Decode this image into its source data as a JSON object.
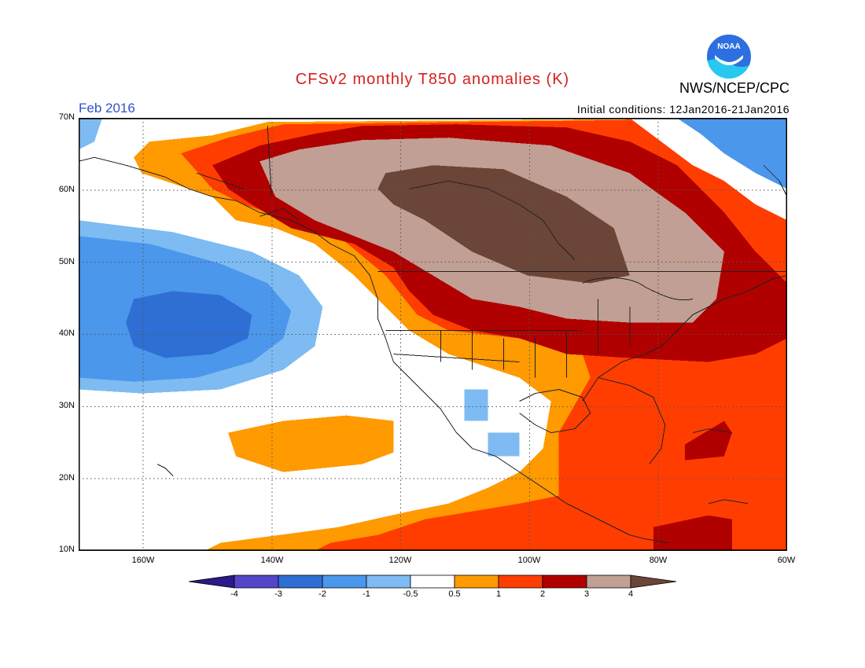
{
  "header": {
    "title": "CFSv2 monthly T850 anomalies (K)",
    "agency": "NWS/NCEP/CPC",
    "logo_text": "NOAA",
    "period": "Feb 2016",
    "initial_conditions": "Initial conditions: 12Jan2016-21Jan2016"
  },
  "colors": {
    "title": "#d62020",
    "period": "#3050d0",
    "frame": "#000000",
    "coast": "#222222",
    "grid": "#555555"
  },
  "map": {
    "lon_range": [
      -170,
      -60
    ],
    "lat_range": [
      10,
      70
    ],
    "lat_labels": [
      "70N",
      "60N",
      "50N",
      "40N",
      "30N",
      "20N",
      "10N"
    ],
    "lon_labels": [
      "160W",
      "140W",
      "120W",
      "100W",
      "80W",
      "60W"
    ],
    "gridlines": "dotted"
  },
  "colorbar": {
    "levels": [
      "-4",
      "-3",
      "-2",
      "-1",
      "-0.5",
      "0.5",
      "1",
      "2",
      "3",
      "4"
    ],
    "colors": [
      "#2a1a8a",
      "#5546c8",
      "#2f6fd4",
      "#4a97ec",
      "#7dbbf2",
      "#ffffff",
      "#ff9a00",
      "#ff3d00",
      "#b00000",
      "#c19f94",
      "#6b4538"
    ]
  }
}
